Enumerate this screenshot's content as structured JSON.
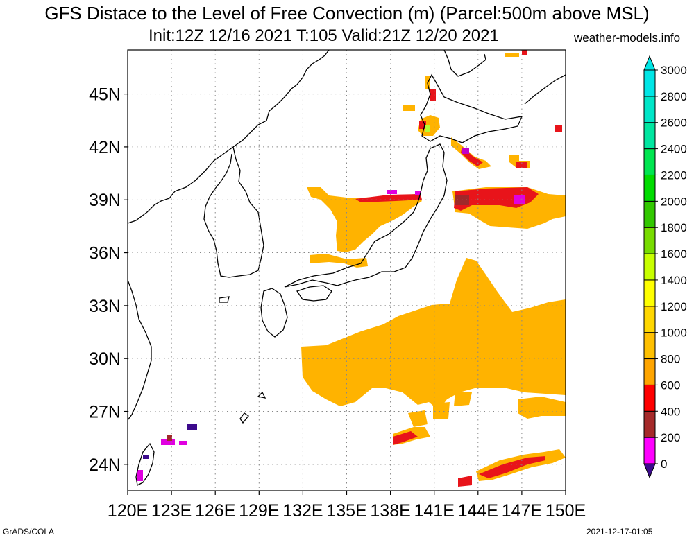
{
  "title": {
    "line1": "GFS Distace to the Level of Free Convection (m) (Parcel:500m above MSL)",
    "line2": "Init:12Z 12/16 2021 T:105 Valid:21Z 12/20 2021",
    "site": "weather-models.info"
  },
  "footer": {
    "left": "GrADS/COLA",
    "right": "2021-12-17-01:05"
  },
  "map": {
    "lon_ticks": [
      {
        "value": 120,
        "label": "120E"
      },
      {
        "value": 123,
        "label": "123E"
      },
      {
        "value": 126,
        "label": "126E"
      },
      {
        "value": 129,
        "label": "129E"
      },
      {
        "value": 132,
        "label": "132E"
      },
      {
        "value": 135,
        "label": "135E"
      },
      {
        "value": 138,
        "label": "138E"
      },
      {
        "value": 141,
        "label": "141E"
      },
      {
        "value": 144,
        "label": "144E"
      },
      {
        "value": 147,
        "label": "147E"
      },
      {
        "value": 150,
        "label": "150E"
      }
    ],
    "lat_ticks": [
      {
        "value": 45,
        "label": "45N"
      },
      {
        "value": 42,
        "label": "42N"
      },
      {
        "value": 39,
        "label": "39N"
      },
      {
        "value": 36,
        "label": "36N"
      },
      {
        "value": 33,
        "label": "33N"
      },
      {
        "value": 30,
        "label": "30N"
      },
      {
        "value": 27,
        "label": "27N"
      },
      {
        "value": 24,
        "label": "24N"
      }
    ],
    "lon_range": [
      120,
      150
    ],
    "lat_range": [
      22.5,
      47.5
    ],
    "grid": "dotted"
  },
  "colorbar": {
    "levels": [
      "0",
      "200",
      "400",
      "600",
      "800",
      "1000",
      "1200",
      "1400",
      "1600",
      "1800",
      "2000",
      "2200",
      "2400",
      "2600",
      "2800",
      "3000"
    ],
    "colors": [
      "#3c0a8c",
      "#ff00ff",
      "#a52a2a",
      "#ff0000",
      "#ffa500",
      "#ffc000",
      "#ffd700",
      "#ffff00",
      "#c8ff00",
      "#78dc00",
      "#32c800",
      "#00dc00",
      "#00e650",
      "#00e6a0",
      "#00e6c8",
      "#00e6e6"
    ]
  }
}
